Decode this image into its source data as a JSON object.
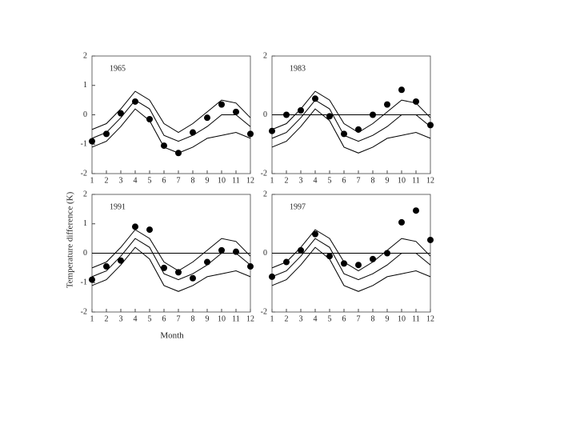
{
  "ylabel": "Temperature difference (K)",
  "xlabel": "Month",
  "chart_data": [
    {
      "type": "line",
      "title": "1965",
      "x": [
        1,
        2,
        3,
        4,
        5,
        6,
        7,
        8,
        9,
        10,
        11,
        12
      ],
      "xlim": [
        1,
        12
      ],
      "xticks": [
        1,
        2,
        3,
        4,
        5,
        6,
        7,
        8,
        9,
        10,
        11,
        12
      ],
      "ylim": [
        -2,
        2
      ],
      "yticks": [
        -2,
        -1,
        0,
        1,
        2
      ],
      "zero_line": false,
      "series": [
        {
          "color": "#000000",
          "values": [
            -0.5,
            -0.3,
            0.2,
            0.8,
            0.5,
            -0.3,
            -0.6,
            -0.3,
            0.1,
            0.5,
            0.4,
            -0.1
          ]
        },
        {
          "color": "#000000",
          "values": [
            -0.8,
            -0.6,
            -0.1,
            0.5,
            0.2,
            -0.7,
            -0.9,
            -0.7,
            -0.4,
            0.0,
            0.0,
            -0.4
          ]
        },
        {
          "color": "#000000",
          "values": [
            -1.1,
            -0.9,
            -0.4,
            0.2,
            -0.2,
            -1.1,
            -1.3,
            -1.1,
            -0.8,
            -0.7,
            -0.6,
            -0.8
          ]
        },
        {
          "color": "#000000",
          "marker": "dot",
          "values": [
            -0.9,
            -0.65,
            0.05,
            0.45,
            -0.15,
            -1.05,
            -1.3,
            -0.6,
            -0.1,
            0.35,
            0.1,
            -0.65
          ]
        }
      ]
    },
    {
      "type": "line",
      "title": "1983",
      "x": [
        1,
        2,
        3,
        4,
        5,
        6,
        7,
        8,
        9,
        10,
        11,
        12
      ],
      "xlim": [
        1,
        12
      ],
      "xticks": [
        1,
        2,
        3,
        4,
        5,
        6,
        7,
        8,
        9,
        10,
        11,
        12
      ],
      "ylim": [
        -2,
        2
      ],
      "yticks": [
        -2,
        0,
        2
      ],
      "zero_line": true,
      "series": [
        {
          "color": "#000000",
          "values": [
            -0.5,
            -0.3,
            0.2,
            0.8,
            0.5,
            -0.3,
            -0.6,
            -0.3,
            0.1,
            0.5,
            0.4,
            -0.1
          ]
        },
        {
          "color": "#000000",
          "values": [
            -0.8,
            -0.6,
            -0.1,
            0.5,
            0.2,
            -0.7,
            -0.9,
            -0.7,
            -0.4,
            0.0,
            0.0,
            -0.4
          ]
        },
        {
          "color": "#000000",
          "values": [
            -1.1,
            -0.9,
            -0.4,
            0.2,
            -0.2,
            -1.1,
            -1.3,
            -1.1,
            -0.8,
            -0.7,
            -0.6,
            -0.8
          ]
        },
        {
          "color": "#000000",
          "marker": "dot",
          "values": [
            -0.55,
            0.0,
            0.15,
            0.55,
            -0.05,
            -0.65,
            -0.5,
            0.0,
            0.35,
            0.85,
            0.45,
            -0.35
          ]
        }
      ]
    },
    {
      "type": "line",
      "title": "1991",
      "x": [
        1,
        2,
        3,
        4,
        5,
        6,
        7,
        8,
        9,
        10,
        11,
        12
      ],
      "xlim": [
        1,
        12
      ],
      "xticks": [
        1,
        2,
        3,
        4,
        5,
        6,
        7,
        8,
        9,
        10,
        11,
        12
      ],
      "ylim": [
        -2,
        2
      ],
      "yticks": [
        -2,
        -1,
        0,
        1,
        2
      ],
      "zero_line": true,
      "series": [
        {
          "color": "#000000",
          "values": [
            -0.5,
            -0.3,
            0.2,
            0.8,
            0.5,
            -0.3,
            -0.6,
            -0.3,
            0.1,
            0.5,
            0.4,
            -0.1
          ]
        },
        {
          "color": "#000000",
          "values": [
            -0.8,
            -0.6,
            -0.1,
            0.5,
            0.2,
            -0.7,
            -0.9,
            -0.7,
            -0.4,
            0.0,
            0.0,
            -0.4
          ]
        },
        {
          "color": "#000000",
          "values": [
            -1.1,
            -0.9,
            -0.4,
            0.2,
            -0.2,
            -1.1,
            -1.3,
            -1.1,
            -0.8,
            -0.7,
            -0.6,
            -0.8
          ]
        },
        {
          "color": "#000000",
          "marker": "dot",
          "values": [
            -0.9,
            -0.45,
            -0.25,
            0.9,
            0.8,
            -0.5,
            -0.65,
            -0.85,
            -0.3,
            0.1,
            0.05,
            -0.45
          ]
        }
      ]
    },
    {
      "type": "line",
      "title": "1997",
      "x": [
        1,
        2,
        3,
        4,
        5,
        6,
        7,
        8,
        9,
        10,
        11,
        12
      ],
      "xlim": [
        1,
        12
      ],
      "xticks": [
        1,
        2,
        3,
        4,
        5,
        6,
        7,
        8,
        9,
        10,
        11,
        12
      ],
      "ylim": [
        -2,
        2
      ],
      "yticks": [
        -2,
        0,
        2
      ],
      "zero_line": true,
      "series": [
        {
          "color": "#000000",
          "values": [
            -0.5,
            -0.3,
            0.2,
            0.8,
            0.5,
            -0.3,
            -0.6,
            -0.3,
            0.1,
            0.5,
            0.4,
            -0.1
          ]
        },
        {
          "color": "#000000",
          "values": [
            -0.8,
            -0.6,
            -0.1,
            0.5,
            0.2,
            -0.7,
            -0.9,
            -0.7,
            -0.4,
            0.0,
            0.0,
            -0.4
          ]
        },
        {
          "color": "#000000",
          "values": [
            -1.1,
            -0.9,
            -0.4,
            0.2,
            -0.2,
            -1.1,
            -1.3,
            -1.1,
            -0.8,
            -0.7,
            -0.6,
            -0.8
          ]
        },
        {
          "color": "#000000",
          "marker": "dot",
          "values": [
            -0.8,
            -0.3,
            0.1,
            0.65,
            -0.1,
            -0.35,
            -0.4,
            -0.2,
            0.0,
            1.05,
            1.45,
            0.45
          ]
        }
      ]
    }
  ]
}
